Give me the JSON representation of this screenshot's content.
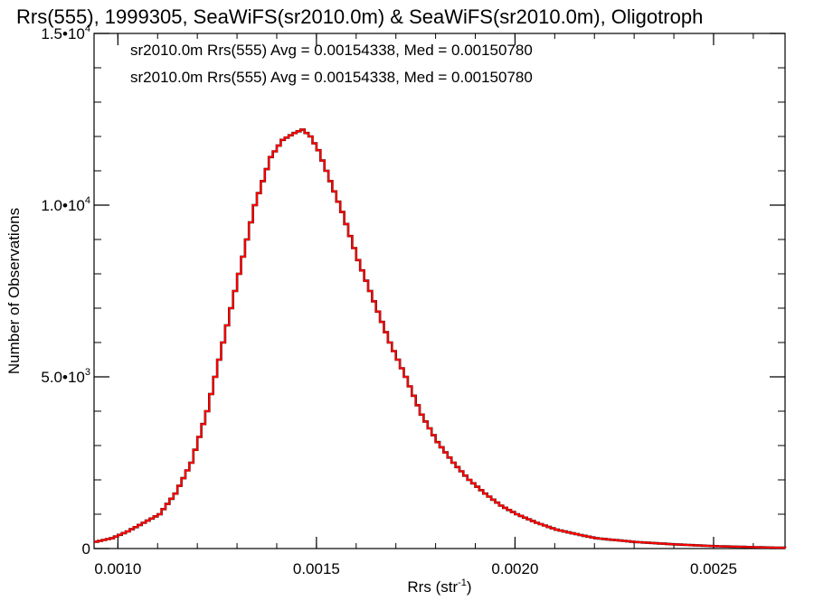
{
  "chart_data": {
    "type": "line",
    "title": "Rrs(555), 1999305, SeaWiFS(sr2010.0m) & SeaWiFS(sr2010.0m), Oligotroph",
    "xlabel": "Rrs (str",
    "xlabel_sup": "-1",
    "xlabel_end": ")",
    "ylabel": "Number of Observations",
    "xlim": [
      0.00094,
      0.00268
    ],
    "ylim": [
      0,
      15000
    ],
    "x_ticks": [
      {
        "value": 0.001,
        "label": "0.0010"
      },
      {
        "value": 0.0015,
        "label": "0.0015"
      },
      {
        "value": 0.002,
        "label": "0.0020"
      },
      {
        "value": 0.0025,
        "label": "0.0025"
      }
    ],
    "y_ticks": [
      {
        "value": 0,
        "mant": "0",
        "exp": ""
      },
      {
        "value": 5000,
        "mant": "5.0•10",
        "exp": "3"
      },
      {
        "value": 10000,
        "mant": "1.0•10",
        "exp": "4"
      },
      {
        "value": 15000,
        "mant": "1.5•10",
        "exp": "4"
      }
    ],
    "x_minor_step": 0.0001,
    "y_minor_step": 1000,
    "series": [
      {
        "name": "sr2010.0m Rrs(555) Avg = 0.00154338, Med = 0.00150780",
        "color": "#000000",
        "x": [
          0.00094,
          0.00098,
          0.00102,
          0.00106,
          0.0011,
          0.00114,
          0.00118,
          0.00122,
          0.00126,
          0.0013,
          0.00134,
          0.00138,
          0.00141,
          0.00144,
          0.00146,
          0.00148,
          0.0015,
          0.00153,
          0.00156,
          0.0016,
          0.00164,
          0.00168,
          0.00172,
          0.00176,
          0.0018,
          0.00184,
          0.00188,
          0.00192,
          0.00196,
          0.002,
          0.00205,
          0.0021,
          0.00215,
          0.0022,
          0.0023,
          0.0024,
          0.0025,
          0.0026,
          0.00268
        ],
        "y": [
          200,
          300,
          500,
          750,
          1000,
          1600,
          2500,
          4000,
          6000,
          8000,
          10000,
          11400,
          11900,
          12100,
          12200,
          12000,
          11600,
          10700,
          9800,
          8400,
          7200,
          6000,
          5000,
          3900,
          3100,
          2500,
          2000,
          1600,
          1250,
          1000,
          750,
          550,
          420,
          300,
          190,
          120,
          70,
          40,
          20
        ]
      },
      {
        "name": "sr2010.0m Rrs(555) Avg = 0.00154338, Med = 0.00150780",
        "color": "#ff0000",
        "x": [
          0.00094,
          0.00098,
          0.00102,
          0.00106,
          0.0011,
          0.00114,
          0.00118,
          0.00122,
          0.00126,
          0.0013,
          0.00134,
          0.00138,
          0.00141,
          0.00144,
          0.00146,
          0.00148,
          0.0015,
          0.00153,
          0.00156,
          0.0016,
          0.00164,
          0.00168,
          0.00172,
          0.00176,
          0.0018,
          0.00184,
          0.00188,
          0.00192,
          0.00196,
          0.002,
          0.00205,
          0.0021,
          0.00215,
          0.0022,
          0.0023,
          0.0024,
          0.0025,
          0.0026,
          0.00268
        ],
        "y": [
          200,
          300,
          500,
          750,
          1000,
          1600,
          2500,
          4000,
          6000,
          8000,
          10000,
          11400,
          11900,
          12100,
          12200,
          12000,
          11600,
          10700,
          9800,
          8400,
          7200,
          6000,
          5000,
          3900,
          3100,
          2500,
          2000,
          1600,
          1250,
          1000,
          750,
          550,
          420,
          300,
          190,
          120,
          70,
          40,
          20
        ]
      }
    ]
  }
}
